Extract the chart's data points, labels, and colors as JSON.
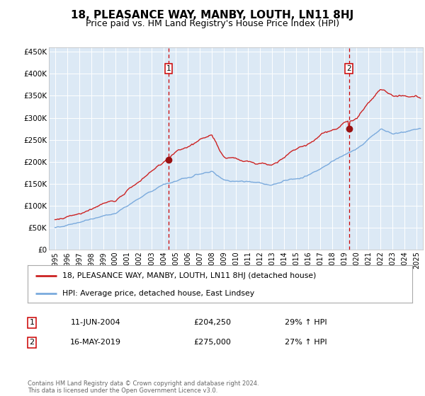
{
  "title": "18, PLEASANCE WAY, MANBY, LOUTH, LN11 8HJ",
  "subtitle": "Price paid vs. HM Land Registry's House Price Index (HPI)",
  "title_fontsize": 11,
  "subtitle_fontsize": 9,
  "background_color": "#ffffff",
  "plot_bg_color": "#dce9f5",
  "grid_color": "#ffffff",
  "ylabel_ticks": [
    "£0",
    "£50K",
    "£100K",
    "£150K",
    "£200K",
    "£250K",
    "£300K",
    "£350K",
    "£400K",
    "£450K"
  ],
  "ylabel_values": [
    0,
    50000,
    100000,
    150000,
    200000,
    250000,
    300000,
    350000,
    400000,
    450000
  ],
  "ylim": [
    0,
    460000
  ],
  "xlim_start": 1994.5,
  "xlim_end": 2025.5,
  "xtick_years": [
    1995,
    1996,
    1997,
    1998,
    1999,
    2000,
    2001,
    2002,
    2003,
    2004,
    2005,
    2006,
    2007,
    2008,
    2009,
    2010,
    2011,
    2012,
    2013,
    2014,
    2015,
    2016,
    2017,
    2018,
    2019,
    2020,
    2021,
    2022,
    2023,
    2024,
    2025
  ],
  "hpi_line_color": "#7aaadd",
  "price_line_color": "#cc2222",
  "marker_color": "#991111",
  "vline_color": "#cc0000",
  "sale1_x": 2004.44,
  "sale1_y": 204250,
  "sale1_label": "1",
  "sale2_x": 2019.37,
  "sale2_y": 275000,
  "sale2_label": "2",
  "legend_line1": "18, PLEASANCE WAY, MANBY, LOUTH, LN11 8HJ (detached house)",
  "legend_line2": "HPI: Average price, detached house, East Lindsey",
  "table_row1_num": "1",
  "table_row1_date": "11-JUN-2004",
  "table_row1_price": "£204,250",
  "table_row1_hpi": "29% ↑ HPI",
  "table_row2_num": "2",
  "table_row2_date": "16-MAY-2019",
  "table_row2_price": "£275,000",
  "table_row2_hpi": "27% ↑ HPI",
  "footer": "Contains HM Land Registry data © Crown copyright and database right 2024.\nThis data is licensed under the Open Government Licence v3.0."
}
